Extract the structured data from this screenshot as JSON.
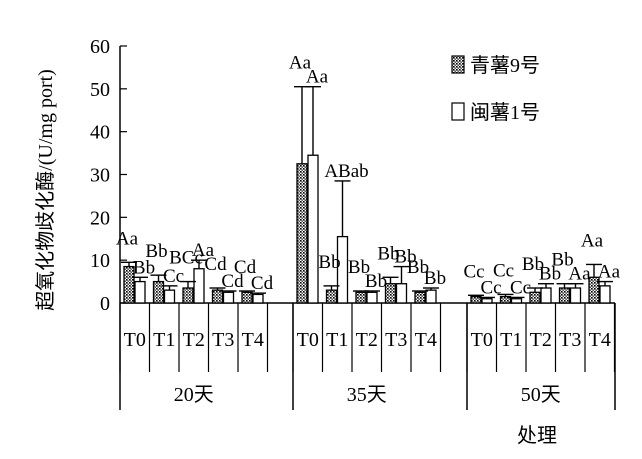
{
  "chart_data": {
    "type": "bar",
    "ylabel": "超氧化物歧化酶/(U/mg port)",
    "xlabel": "处理",
    "ylim": [
      0,
      60
    ],
    "yticks": [
      0,
      10,
      20,
      30,
      40,
      50,
      60
    ],
    "legend_position": "top-right",
    "groups": [
      {
        "label": "20天",
        "categories": [
          "T0",
          "T1",
          "T2",
          "T3",
          "T4"
        ],
        "series": [
          {
            "name": "青薯9号",
            "pattern": "dotted",
            "values": [
              8.5,
              5.0,
              3.5,
              3.0,
              2.5
            ],
            "errors": [
              1.0,
              1.5,
              1.5,
              0.5,
              0.3
            ],
            "letters": [
              "Aa",
              "Bb",
              "BCc",
              "Cd",
              "Cd"
            ]
          },
          {
            "name": "闽薯1号",
            "pattern": "white",
            "values": [
              5.0,
              3.0,
              8.0,
              2.5,
              2.0
            ],
            "errors": [
              1.0,
              1.0,
              2.0,
              0.3,
              0.3
            ],
            "letters": [
              "Bb",
              "Cc",
              "Aa",
              "Cd",
              "Cd"
            ]
          }
        ]
      },
      {
        "label": "35天",
        "categories": [
          "T0",
          "T1",
          "T2",
          "T3",
          "T4"
        ],
        "series": [
          {
            "name": "青薯9号",
            "pattern": "dotted",
            "values": [
              32.5,
              3.0,
              2.5,
              4.5,
              2.5
            ],
            "errors": [
              18.0,
              1.0,
              0.3,
              1.5,
              0.3
            ],
            "letters": [
              "Aa",
              "Bb",
              "Bb",
              "Bb",
              "Bb"
            ]
          },
          {
            "name": "闽薯1号",
            "pattern": "white",
            "values": [
              34.5,
              15.5,
              2.5,
              4.5,
              3.0
            ],
            "errors": [
              16.0,
              13.0,
              0.3,
              4.0,
              0.5
            ],
            "letters": [
              "Aa",
              "ABab",
              "Bb",
              "Bb",
              "Bb"
            ]
          }
        ]
      },
      {
        "label": "50天",
        "categories": [
          "T0",
          "T1",
          "T2",
          "T3",
          "T4"
        ],
        "series": [
          {
            "name": "青薯9号",
            "pattern": "dotted",
            "values": [
              1.5,
              1.5,
              2.5,
              3.5,
              6.0
            ],
            "errors": [
              0.3,
              0.5,
              1.0,
              1.0,
              3.0
            ],
            "letters": [
              "Cc",
              "Cc",
              "Bb",
              "Bb",
              "Aa"
            ]
          },
          {
            "name": "闽薯1号",
            "pattern": "white",
            "values": [
              1.0,
              1.0,
              3.5,
              3.5,
              4.0
            ],
            "errors": [
              0.3,
              0.3,
              1.0,
              1.0,
              1.0
            ],
            "letters": [
              "Cc",
              "Cc",
              "Bb",
              "Aa",
              "Aa"
            ]
          }
        ]
      }
    ]
  }
}
